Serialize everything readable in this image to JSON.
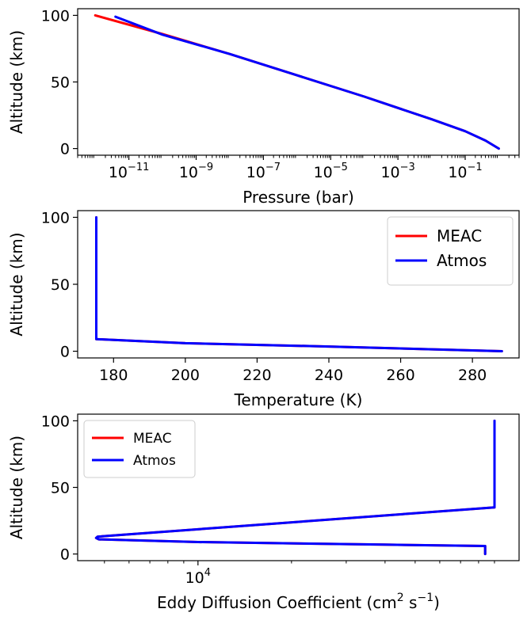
{
  "colors": {
    "meac": "#ff0000",
    "atmos": "#0000ff"
  },
  "chart_data": [
    {
      "type": "line",
      "xscale": "log",
      "xlabel": "Pressure (bar)",
      "ylabel": "Altitude (km)",
      "xlim": [
        3e-13,
        4
      ],
      "ylim": [
        -5,
        105
      ],
      "xticks": [
        {
          "value": 1e-11,
          "base": "10",
          "exp": "−11"
        },
        {
          "value": 1e-09,
          "base": "10",
          "exp": "−9"
        },
        {
          "value": 1e-07,
          "base": "10",
          "exp": "−7"
        },
        {
          "value": 1e-05,
          "base": "10",
          "exp": "−5"
        },
        {
          "value": 0.001,
          "base": "10",
          "exp": "−3"
        },
        {
          "value": 0.1,
          "base": "10",
          "exp": "−1"
        }
      ],
      "yticks": [
        0,
        50,
        100
      ],
      "legend": null,
      "series": [
        {
          "name": "MEAC",
          "color": "#ff0000",
          "x": [
            1e-12,
            1e-10,
            1e-08,
            1e-06,
            0.0001,
            0.01,
            0.1,
            0.4,
            1.0
          ],
          "y": [
            100,
            86,
            71,
            55,
            39,
            22,
            13,
            6,
            0
          ]
        },
        {
          "name": "Atmos",
          "color": "#0000ff",
          "x": [
            4e-12,
            1e-10,
            1e-08,
            1e-06,
            0.0001,
            0.01,
            0.1,
            0.4,
            1.0
          ],
          "y": [
            99,
            85.5,
            71,
            55,
            39,
            22,
            13,
            6,
            0
          ]
        }
      ]
    },
    {
      "type": "line",
      "xscale": "linear",
      "xlabel": "Temperature (K)",
      "ylabel": "Altitude (km)",
      "xlim": [
        170,
        293
      ],
      "ylim": [
        -5,
        105
      ],
      "xticks": [
        180,
        200,
        220,
        240,
        260,
        280
      ],
      "yticks": [
        0,
        50,
        100
      ],
      "legend": {
        "position": "top-right",
        "entries": [
          "MEAC",
          "Atmos"
        ]
      },
      "series": [
        {
          "name": "MEAC",
          "color": "#ff0000",
          "x": [
            175.2,
            175.2,
            200,
            240,
            288.2
          ],
          "y": [
            100,
            9,
            6,
            3.5,
            0
          ]
        },
        {
          "name": "Atmos",
          "color": "#0000ff",
          "x": [
            175.2,
            175.2,
            200,
            240,
            288.2
          ],
          "y": [
            100,
            9,
            6,
            3.5,
            0
          ]
        }
      ]
    },
    {
      "type": "line",
      "xscale": "log",
      "xlabel": "Eddy Diffusion Coefficient (cm² s⁻¹)",
      "xlabel_parts": {
        "pre": "Eddy Diffusion Coefficient (cm",
        "sup1": "2",
        "mid": " s",
        "sup2": "−1",
        "post": ")"
      },
      "ylabel": "Altitude (km)",
      "xlim": [
        4100,
        108000
      ],
      "ylim": [
        -5,
        105
      ],
      "xticks": [
        {
          "value": 10000,
          "base": "10",
          "exp": "4"
        }
      ],
      "yticks": [
        0,
        50,
        100
      ],
      "legend": {
        "position": "top-left",
        "entries": [
          "MEAC",
          "Atmos"
        ]
      },
      "series": [
        {
          "name": "MEAC",
          "color": "#ff0000",
          "x": [
            90000,
            90000,
            4750,
            4700,
            4800,
            10000,
            40000,
            84000,
            84000
          ],
          "y": [
            100,
            35,
            13,
            12,
            11,
            9,
            7,
            6,
            0
          ]
        },
        {
          "name": "Atmos",
          "color": "#0000ff",
          "x": [
            90000,
            90000,
            4750,
            4700,
            4800,
            10000,
            40000,
            84000,
            84000
          ],
          "y": [
            100,
            35,
            13,
            12,
            11,
            9,
            7,
            6,
            0
          ]
        }
      ]
    }
  ]
}
